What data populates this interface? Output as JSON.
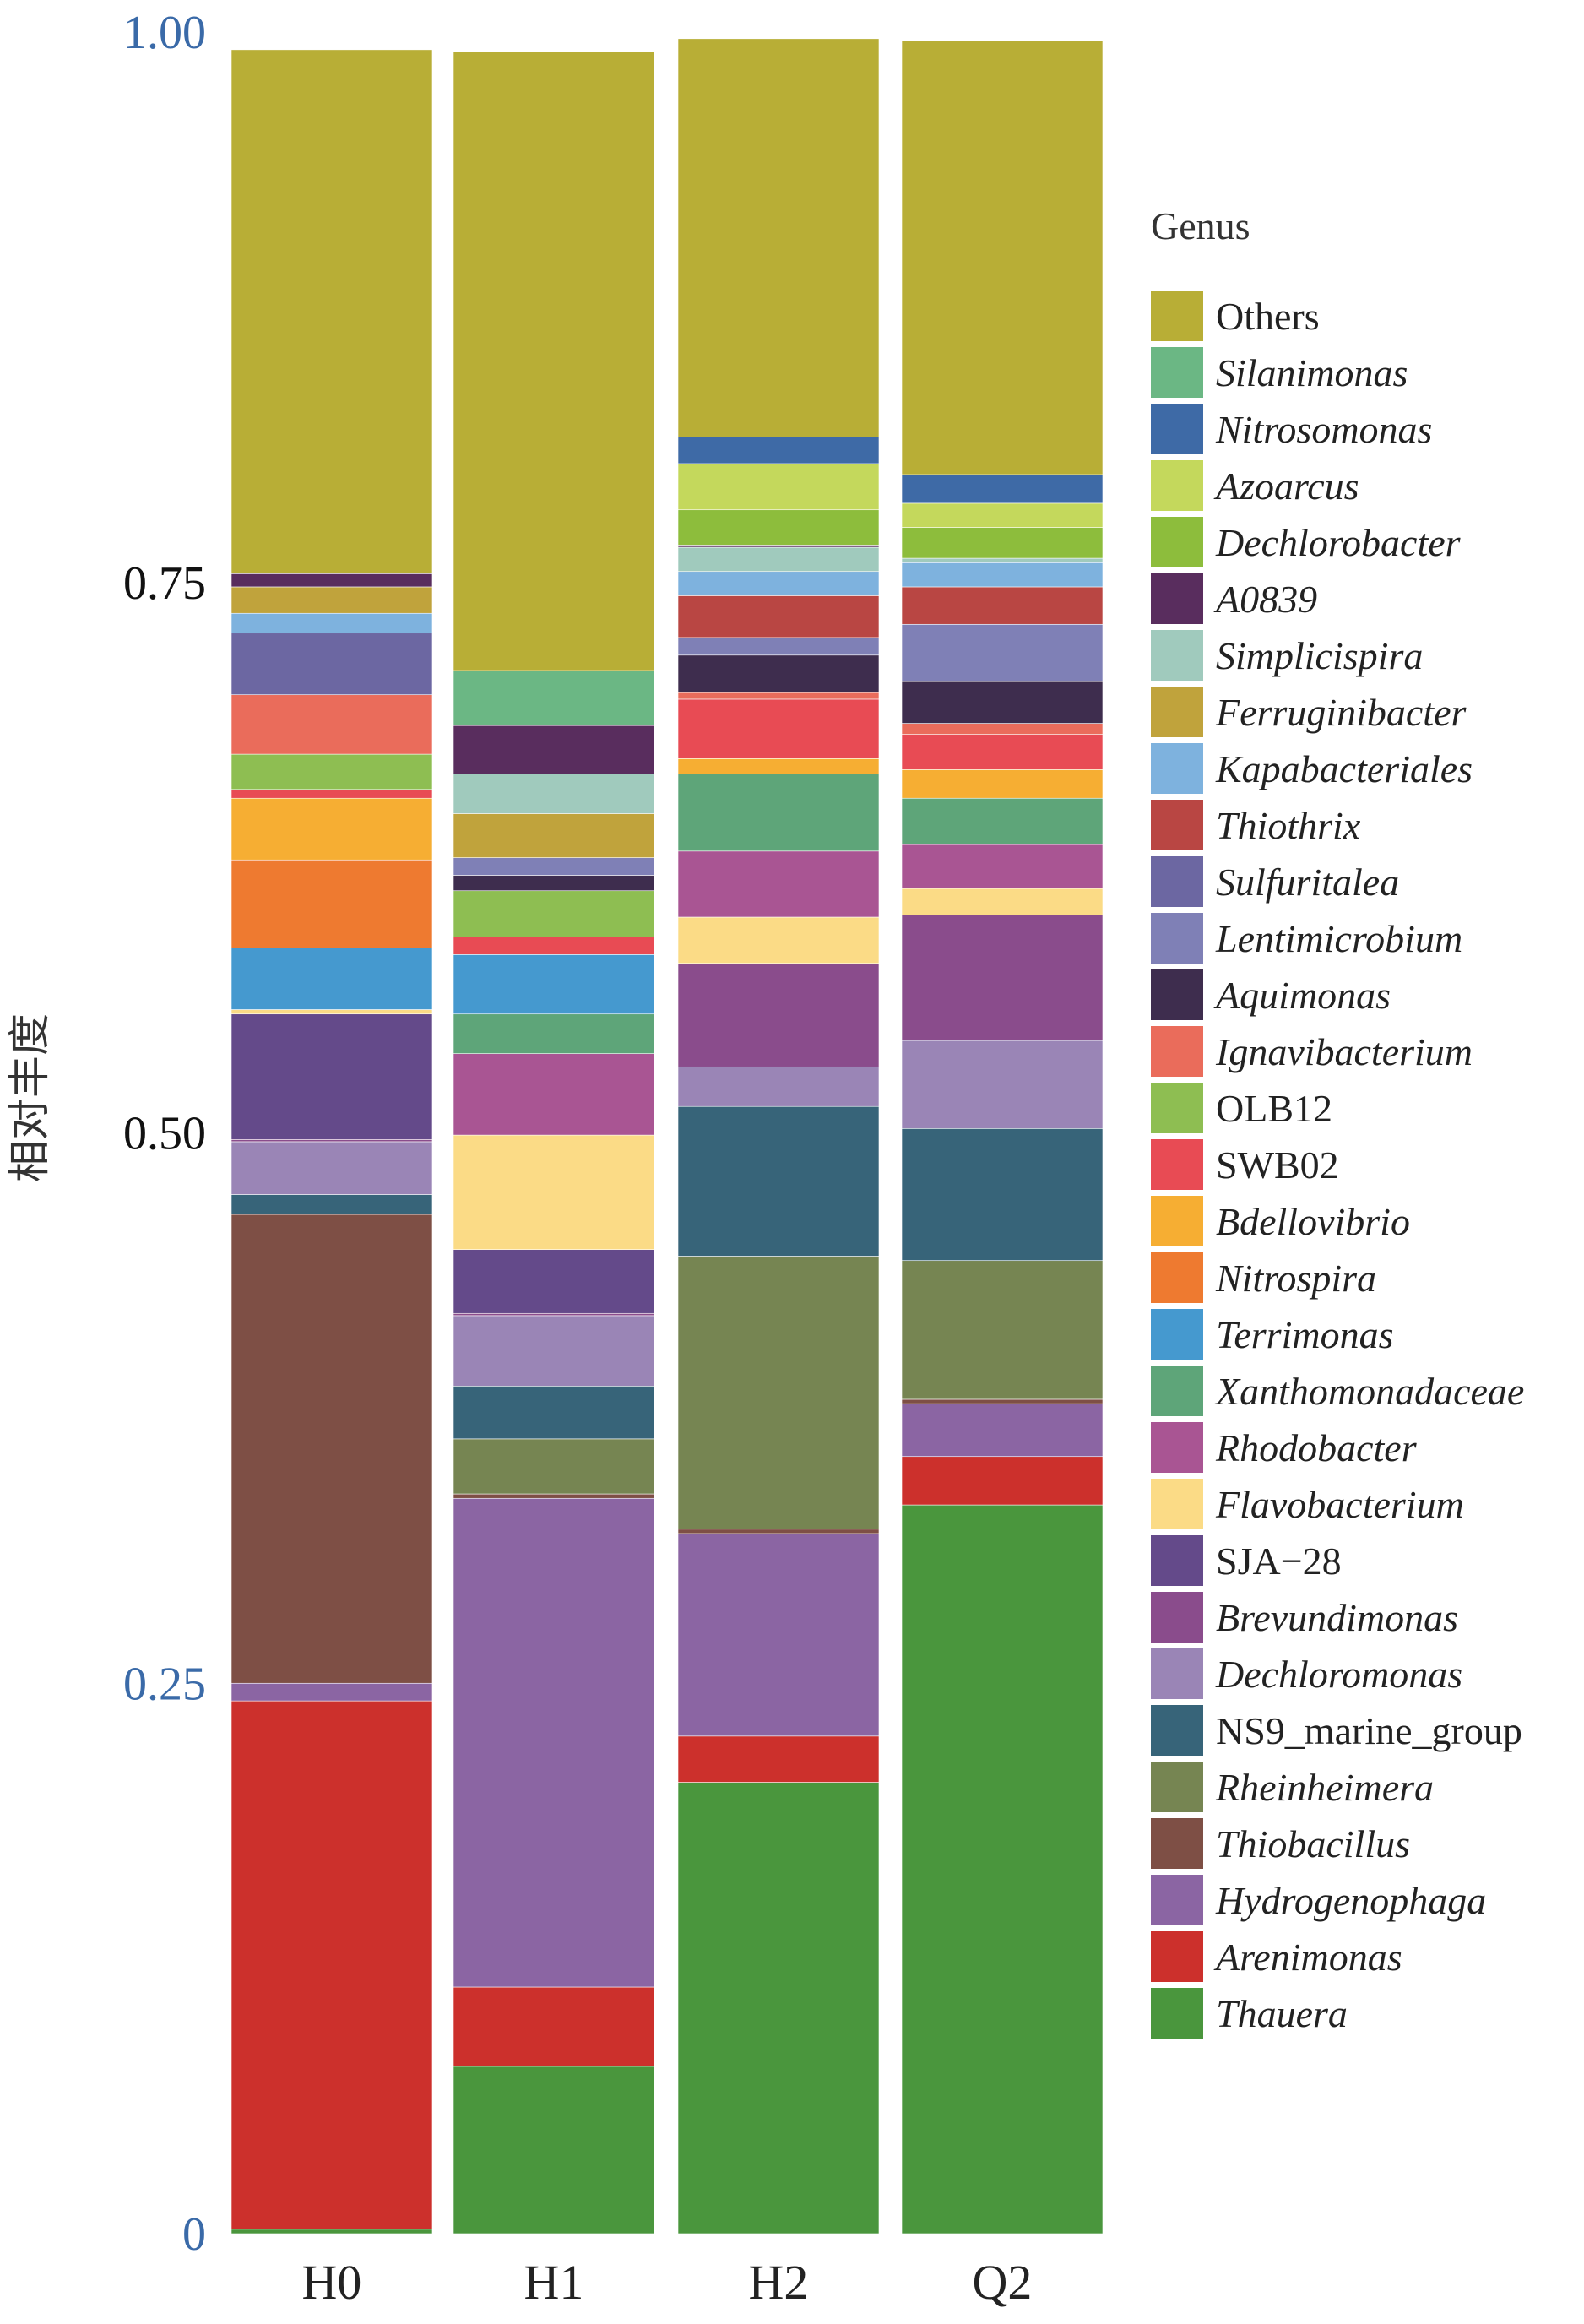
{
  "chart_data": {
    "type": "bar",
    "stacked": true,
    "ylabel": "相对丰度",
    "ylim": [
      0,
      1
    ],
    "yticks": [
      {
        "value": 0,
        "label": "0",
        "color": "#3a6aa8"
      },
      {
        "value": 0.25,
        "label": "0.25",
        "color": "#3a6aa8"
      },
      {
        "value": 0.5,
        "label": "0.50",
        "color": "#111111"
      },
      {
        "value": 0.75,
        "label": "0.75",
        "color": "#111111"
      },
      {
        "value": 1.0,
        "label": "1.00",
        "color": "#3a6aa8"
      }
    ],
    "categories": [
      "H0",
      "H1",
      "H2",
      "Q2"
    ],
    "legend_title": "Genus",
    "legend_position": "right",
    "series": [
      {
        "name": "Thauera",
        "color": "#4a963d",
        "italic": true,
        "values": [
          0.002,
          0.076,
          0.205,
          0.331
        ]
      },
      {
        "name": "Arenimonas",
        "color": "#cc302c",
        "italic": true,
        "values": [
          0.24,
          0.036,
          0.021,
          0.022
        ]
      },
      {
        "name": "Hydrogenophaga",
        "color": "#8b65a3",
        "italic": true,
        "values": [
          0.008,
          0.222,
          0.092,
          0.024
        ]
      },
      {
        "name": "Thiobacillus",
        "color": "#7e4f45",
        "italic": true,
        "values": [
          0.213,
          0.002,
          0.002,
          0.002
        ]
      },
      {
        "name": "Rheinheimera",
        "color": "#768552",
        "italic": true,
        "values": [
          0.0,
          0.025,
          0.124,
          0.063
        ]
      },
      {
        "name": "NS9_marine_group",
        "color": "#376479",
        "italic": false,
        "values": [
          0.009,
          0.024,
          0.068,
          0.06
        ]
      },
      {
        "name": "Dechloromonas",
        "color": "#9a85b6",
        "italic": true,
        "values": [
          0.024,
          0.032,
          0.018,
          0.04
        ]
      },
      {
        "name": "Brevundimonas",
        "color": "#8a4c8c",
        "italic": true,
        "values": [
          0.001,
          0.001,
          0.047,
          0.057
        ]
      },
      {
        "name": "SJA−28",
        "color": "#644a8a",
        "italic": false,
        "values": [
          0.057,
          0.029,
          0.0,
          0.0
        ]
      },
      {
        "name": "Flavobacterium",
        "color": "#fbdb86",
        "italic": true,
        "values": [
          0.002,
          0.052,
          0.021,
          0.012
        ]
      },
      {
        "name": "Rhodobacter",
        "color": "#a95593",
        "italic": true,
        "values": [
          0.0,
          0.037,
          0.03,
          0.02
        ]
      },
      {
        "name": "Xanthomonadaceae",
        "color": "#5ea579",
        "italic": true,
        "values": [
          0.0,
          0.018,
          0.035,
          0.021
        ]
      },
      {
        "name": "Terrimonas",
        "color": "#4599cf",
        "italic": true,
        "values": [
          0.028,
          0.027,
          0.0,
          0.0
        ]
      },
      {
        "name": "Nitrospira",
        "color": "#ee7a30",
        "italic": true,
        "values": [
          0.04,
          0.0,
          0.0,
          0.0
        ]
      },
      {
        "name": "Bdellovibrio",
        "color": "#f6ae33",
        "italic": true,
        "values": [
          0.028,
          0.0,
          0.007,
          0.013
        ]
      },
      {
        "name": "SWB02",
        "color": "#e84b54",
        "italic": false,
        "values": [
          0.004,
          0.008,
          0.027,
          0.016
        ]
      },
      {
        "name": "OLB12",
        "color": "#8ebe52",
        "italic": false,
        "values": [
          0.016,
          0.021,
          0.0,
          0.0
        ]
      },
      {
        "name": "Ignavibacterium",
        "color": "#ea6c5b",
        "italic": true,
        "values": [
          0.027,
          0.0,
          0.003,
          0.005
        ]
      },
      {
        "name": "Aquimonas",
        "color": "#3e2d4e",
        "italic": true,
        "values": [
          0.0,
          0.007,
          0.017,
          0.019
        ]
      },
      {
        "name": "Lentimicrobium",
        "color": "#7f80b6",
        "italic": true,
        "values": [
          0.0,
          0.008,
          0.008,
          0.026
        ]
      },
      {
        "name": "Sulfuritalea",
        "color": "#6c67a2",
        "italic": true,
        "values": [
          0.028,
          0.0,
          0.0,
          0.0
        ]
      },
      {
        "name": "Thiothrix",
        "color": "#b94643",
        "italic": true,
        "values": [
          0.0,
          0.0,
          0.019,
          0.017
        ]
      },
      {
        "name": "Kapabacteriales",
        "color": "#7eb2de",
        "italic": true,
        "values": [
          0.009,
          0.0,
          0.011,
          0.011
        ]
      },
      {
        "name": "Ferruginibacter",
        "color": "#c0a33c",
        "italic": true,
        "values": [
          0.012,
          0.02,
          0.0,
          0.0
        ]
      },
      {
        "name": "Simplicispira",
        "color": "#a0cabd",
        "italic": true,
        "values": [
          0.0,
          0.018,
          0.011,
          0.002
        ]
      },
      {
        "name": "A0839",
        "color": "#592d5e",
        "italic": true,
        "values": [
          0.006,
          0.022,
          0.001,
          0.0
        ]
      },
      {
        "name": "Dechlorobacter",
        "color": "#8dbd3c",
        "italic": true,
        "values": [
          0.0,
          0.0,
          0.016,
          0.014
        ]
      },
      {
        "name": "Azoarcus",
        "color": "#c4d85c",
        "italic": true,
        "values": [
          0.0,
          0.0,
          0.021,
          0.011
        ]
      },
      {
        "name": "Nitrosomonas",
        "color": "#3e6aa6",
        "italic": true,
        "values": [
          0.0,
          0.0,
          0.012,
          0.013
        ]
      },
      {
        "name": "Silanimonas",
        "color": "#6bb784",
        "italic": true,
        "values": [
          0.0,
          0.025,
          0.0,
          0.0
        ]
      },
      {
        "name": "Others",
        "color": "#b8ae36",
        "italic": false,
        "values": [
          0.238,
          0.281,
          0.181,
          0.197
        ]
      }
    ]
  }
}
